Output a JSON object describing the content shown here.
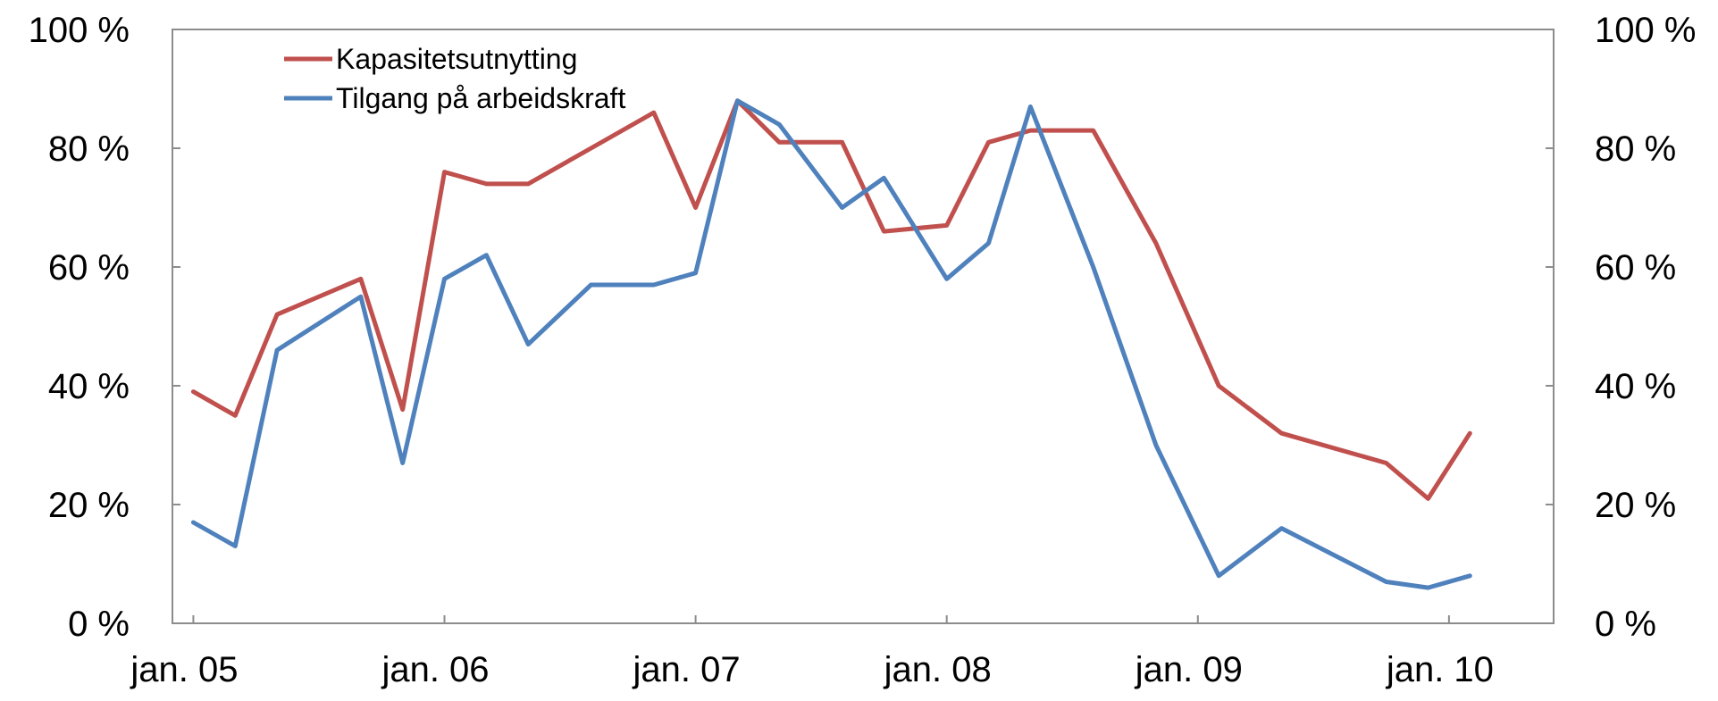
{
  "chart_data": {
    "type": "line",
    "title": "",
    "xlabel": "",
    "ylabel": "",
    "ylim": [
      0,
      100
    ],
    "y_ticks": [
      0,
      20,
      40,
      60,
      80,
      100
    ],
    "y_tick_labels": [
      "0 %",
      "20 %",
      "40 %",
      "60 %",
      "80 %",
      "100 %"
    ],
    "y_axes": [
      "left",
      "right"
    ],
    "x_ticks": [
      "2005-01",
      "2006-01",
      "2007-01",
      "2008-01",
      "2009-01",
      "2010-01"
    ],
    "x_tick_labels": [
      "jan. 05",
      "jan. 06",
      "jan. 07",
      "jan. 08",
      "jan. 09",
      "jan. 10"
    ],
    "x_range": [
      "2004-12",
      "2010-06"
    ],
    "grid": false,
    "legend_position": "top-left",
    "series": [
      {
        "name": "Kapasitetsutnytting",
        "color": "#c0504d",
        "points": [
          [
            "2005-01",
            39
          ],
          [
            "2005-03",
            35
          ],
          [
            "2005-05",
            52
          ],
          [
            "2005-09",
            58
          ],
          [
            "2005-11",
            36
          ],
          [
            "2006-01",
            76
          ],
          [
            "2006-03",
            74
          ],
          [
            "2006-05",
            74
          ],
          [
            "2006-08",
            80
          ],
          [
            "2006-11",
            86
          ],
          [
            "2007-01",
            70
          ],
          [
            "2007-03",
            88
          ],
          [
            "2007-05",
            81
          ],
          [
            "2007-08",
            81
          ],
          [
            "2007-10",
            66
          ],
          [
            "2008-01",
            67
          ],
          [
            "2008-03",
            81
          ],
          [
            "2008-05",
            83
          ],
          [
            "2008-08",
            83
          ],
          [
            "2008-11",
            64
          ],
          [
            "2009-02",
            40
          ],
          [
            "2009-05",
            32
          ],
          [
            "2009-10",
            27
          ],
          [
            "2009-12",
            21
          ],
          [
            "2010-02",
            32
          ]
        ]
      },
      {
        "name": "Tilgang på arbeidskraft",
        "color": "#4f81bd",
        "points": [
          [
            "2005-01",
            17
          ],
          [
            "2005-03",
            13
          ],
          [
            "2005-05",
            46
          ],
          [
            "2005-09",
            55
          ],
          [
            "2005-11",
            27
          ],
          [
            "2006-01",
            58
          ],
          [
            "2006-03",
            62
          ],
          [
            "2006-05",
            47
          ],
          [
            "2006-08",
            57
          ],
          [
            "2006-11",
            57
          ],
          [
            "2007-01",
            59
          ],
          [
            "2007-03",
            88
          ],
          [
            "2007-05",
            84
          ],
          [
            "2007-08",
            70
          ],
          [
            "2007-10",
            75
          ],
          [
            "2008-01",
            58
          ],
          [
            "2008-03",
            64
          ],
          [
            "2008-05",
            87
          ],
          [
            "2008-08",
            60
          ],
          [
            "2008-11",
            30
          ],
          [
            "2009-02",
            8
          ],
          [
            "2009-05",
            16
          ],
          [
            "2009-10",
            7
          ],
          [
            "2009-12",
            6
          ],
          [
            "2010-02",
            8
          ]
        ]
      }
    ]
  }
}
